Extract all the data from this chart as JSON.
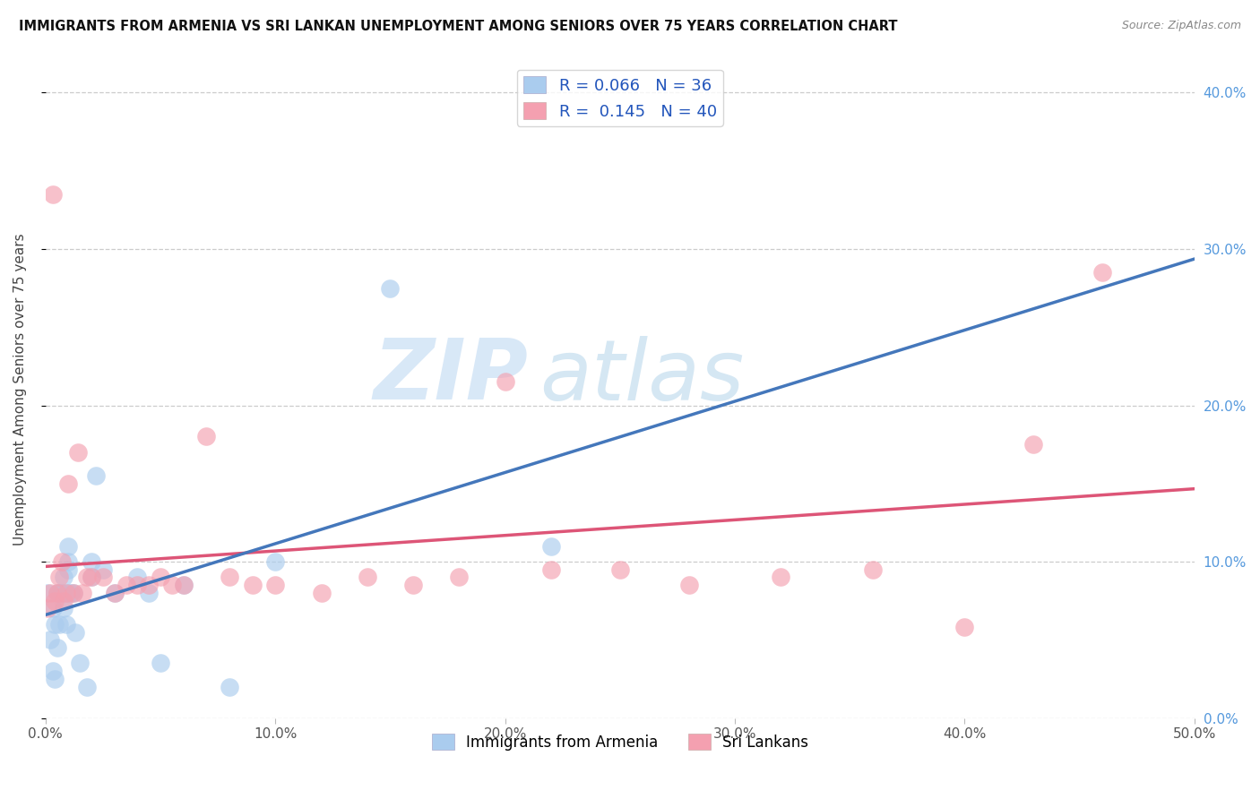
{
  "title": "IMMIGRANTS FROM ARMENIA VS SRI LANKAN UNEMPLOYMENT AMONG SENIORS OVER 75 YEARS CORRELATION CHART",
  "source": "Source: ZipAtlas.com",
  "ylabel": "Unemployment Among Seniors over 75 years",
  "xlim": [
    0.0,
    0.5
  ],
  "ylim": [
    0.0,
    0.42
  ],
  "x_ticks": [
    0.0,
    0.1,
    0.2,
    0.3,
    0.4,
    0.5
  ],
  "x_tick_labels": [
    "0.0%",
    "10.0%",
    "20.0%",
    "30.0%",
    "40.0%",
    "50.0%"
  ],
  "y_ticks": [
    0.0,
    0.1,
    0.2,
    0.3,
    0.4
  ],
  "y_tick_labels_right": [
    "0.0%",
    "10.0%",
    "20.0%",
    "30.0%",
    "40.0%"
  ],
  "legend_label1": "Immigrants from Armenia",
  "legend_label2": "Sri Lankans",
  "R1": "0.066",
  "N1": "36",
  "R2": "0.145",
  "N2": "40",
  "color1": "#aaccee",
  "color2": "#f4a0b0",
  "color1_line": "#4477bb",
  "color2_line": "#dd5577",
  "watermark_zip": "ZIP",
  "watermark_atlas": "atlas",
  "armenia_x": [
    0.001,
    0.002,
    0.003,
    0.003,
    0.004,
    0.004,
    0.005,
    0.005,
    0.006,
    0.006,
    0.007,
    0.008,
    0.008,
    0.009,
    0.01,
    0.01,
    0.01,
    0.01,
    0.011,
    0.012,
    0.013,
    0.015,
    0.018,
    0.02,
    0.02,
    0.022,
    0.025,
    0.03,
    0.04,
    0.045,
    0.05,
    0.06,
    0.08,
    0.1,
    0.15,
    0.22
  ],
  "armenia_y": [
    0.08,
    0.05,
    0.03,
    0.07,
    0.025,
    0.06,
    0.045,
    0.08,
    0.06,
    0.08,
    0.08,
    0.07,
    0.09,
    0.06,
    0.08,
    0.095,
    0.1,
    0.11,
    0.08,
    0.08,
    0.055,
    0.035,
    0.02,
    0.09,
    0.1,
    0.155,
    0.095,
    0.08,
    0.09,
    0.08,
    0.035,
    0.085,
    0.02,
    0.1,
    0.275,
    0.11
  ],
  "srilankan_x": [
    0.001,
    0.002,
    0.003,
    0.004,
    0.005,
    0.006,
    0.007,
    0.008,
    0.009,
    0.01,
    0.012,
    0.014,
    0.016,
    0.018,
    0.02,
    0.025,
    0.03,
    0.035,
    0.04,
    0.045,
    0.05,
    0.055,
    0.06,
    0.07,
    0.08,
    0.09,
    0.1,
    0.12,
    0.14,
    0.16,
    0.18,
    0.2,
    0.22,
    0.25,
    0.28,
    0.32,
    0.36,
    0.4,
    0.43,
    0.46
  ],
  "srilankan_y": [
    0.07,
    0.08,
    0.335,
    0.075,
    0.08,
    0.09,
    0.1,
    0.075,
    0.08,
    0.15,
    0.08,
    0.17,
    0.08,
    0.09,
    0.09,
    0.09,
    0.08,
    0.085,
    0.085,
    0.085,
    0.09,
    0.085,
    0.085,
    0.18,
    0.09,
    0.085,
    0.085,
    0.08,
    0.09,
    0.085,
    0.09,
    0.215,
    0.095,
    0.095,
    0.085,
    0.09,
    0.095,
    0.058,
    0.175,
    0.285
  ]
}
